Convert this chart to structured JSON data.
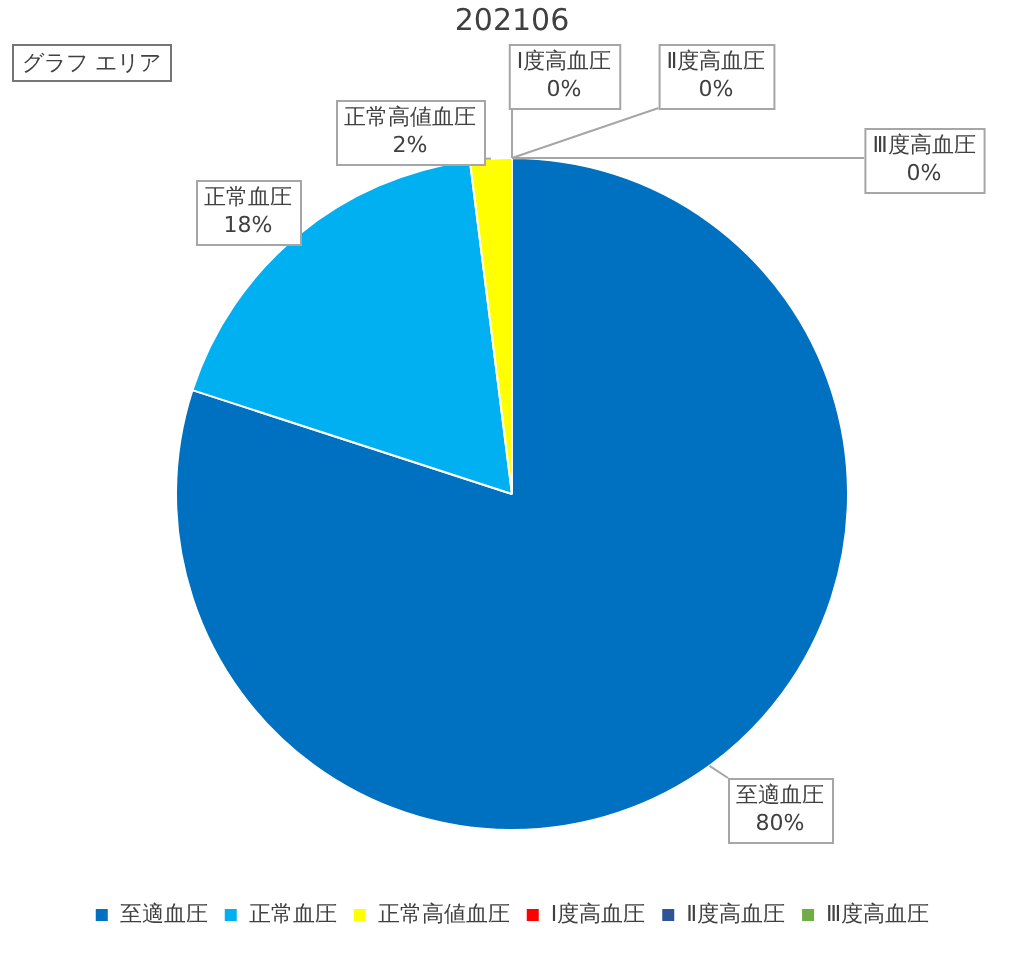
{
  "chart_data": {
    "type": "pie",
    "title": "202106",
    "categories": [
      "至適血圧",
      "正常血圧",
      "正常高値血圧",
      "Ⅰ度高血圧",
      "Ⅱ度高血圧",
      "Ⅲ度高血圧"
    ],
    "values": [
      80,
      18,
      2,
      0,
      0,
      0
    ],
    "value_labels": [
      "80%",
      "18%",
      "2%",
      "0%",
      "0%",
      "0%"
    ],
    "colors": [
      "#0070c0",
      "#00b0f0",
      "#ffff00",
      "#ff0000",
      "#2f5597",
      "#70ad47"
    ],
    "legend": "bottom",
    "annotations": [
      "グラフ エリア"
    ]
  }
}
